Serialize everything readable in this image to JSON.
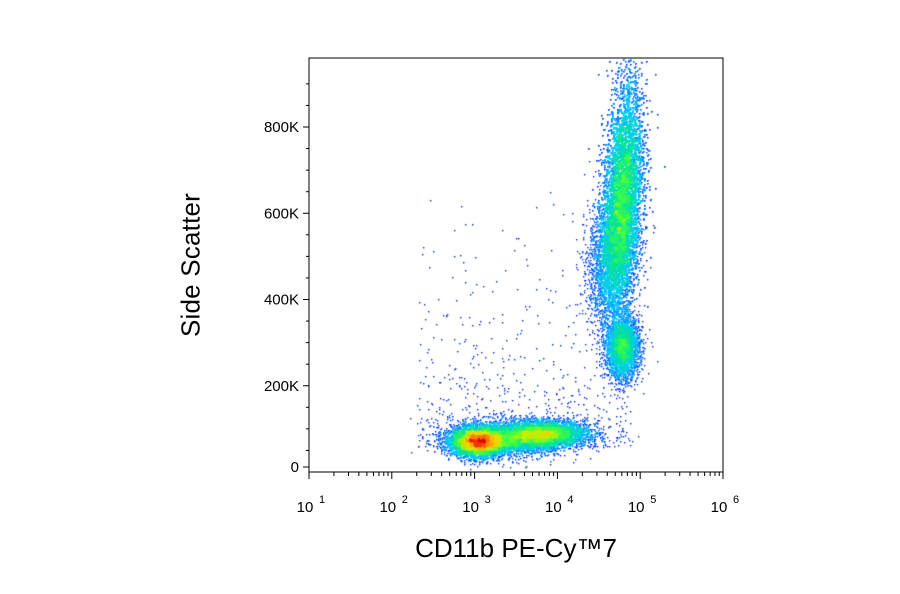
{
  "chart_data": {
    "type": "scatter",
    "title": "",
    "xlabel": "CD11b PE-Cy™7",
    "ylabel": "Side Scatter",
    "x_scale": "log",
    "xlim": [
      10,
      1000000
    ],
    "ylim": [
      0,
      960000
    ],
    "x_ticks": [
      {
        "value": 10,
        "base": "10",
        "exp": "1"
      },
      {
        "value": 100,
        "base": "10",
        "exp": "2"
      },
      {
        "value": 1000,
        "base": "10",
        "exp": "3"
      },
      {
        "value": 10000,
        "base": "10",
        "exp": "4"
      },
      {
        "value": 100000,
        "base": "10",
        "exp": "5"
      },
      {
        "value": 1000000,
        "base": "10",
        "exp": "6"
      }
    ],
    "y_ticks": [
      {
        "value": 0,
        "label": "0"
      },
      {
        "value": 200000,
        "label": "200K"
      },
      {
        "value": 400000,
        "label": "400K"
      },
      {
        "value": 600000,
        "label": "600K"
      },
      {
        "value": 800000,
        "label": "800K"
      }
    ],
    "colormap": [
      "#0000c8",
      "#0060ff",
      "#00c8ff",
      "#00e0a0",
      "#40ff40",
      "#c8f000",
      "#ffc800",
      "#ff6400",
      "#e00000"
    ],
    "grid": false,
    "legend": "none",
    "populations": [
      {
        "x_center": 1100,
        "y_center": 75000,
        "relative_density": 1.0
      },
      {
        "x_center": 6000,
        "y_center": 90000,
        "relative_density": 0.45
      },
      {
        "x_center": 60000,
        "y_center": 290000,
        "relative_density": 0.35
      },
      {
        "x_center": 60000,
        "y_center": 640000,
        "relative_density": 0.6
      }
    ]
  }
}
